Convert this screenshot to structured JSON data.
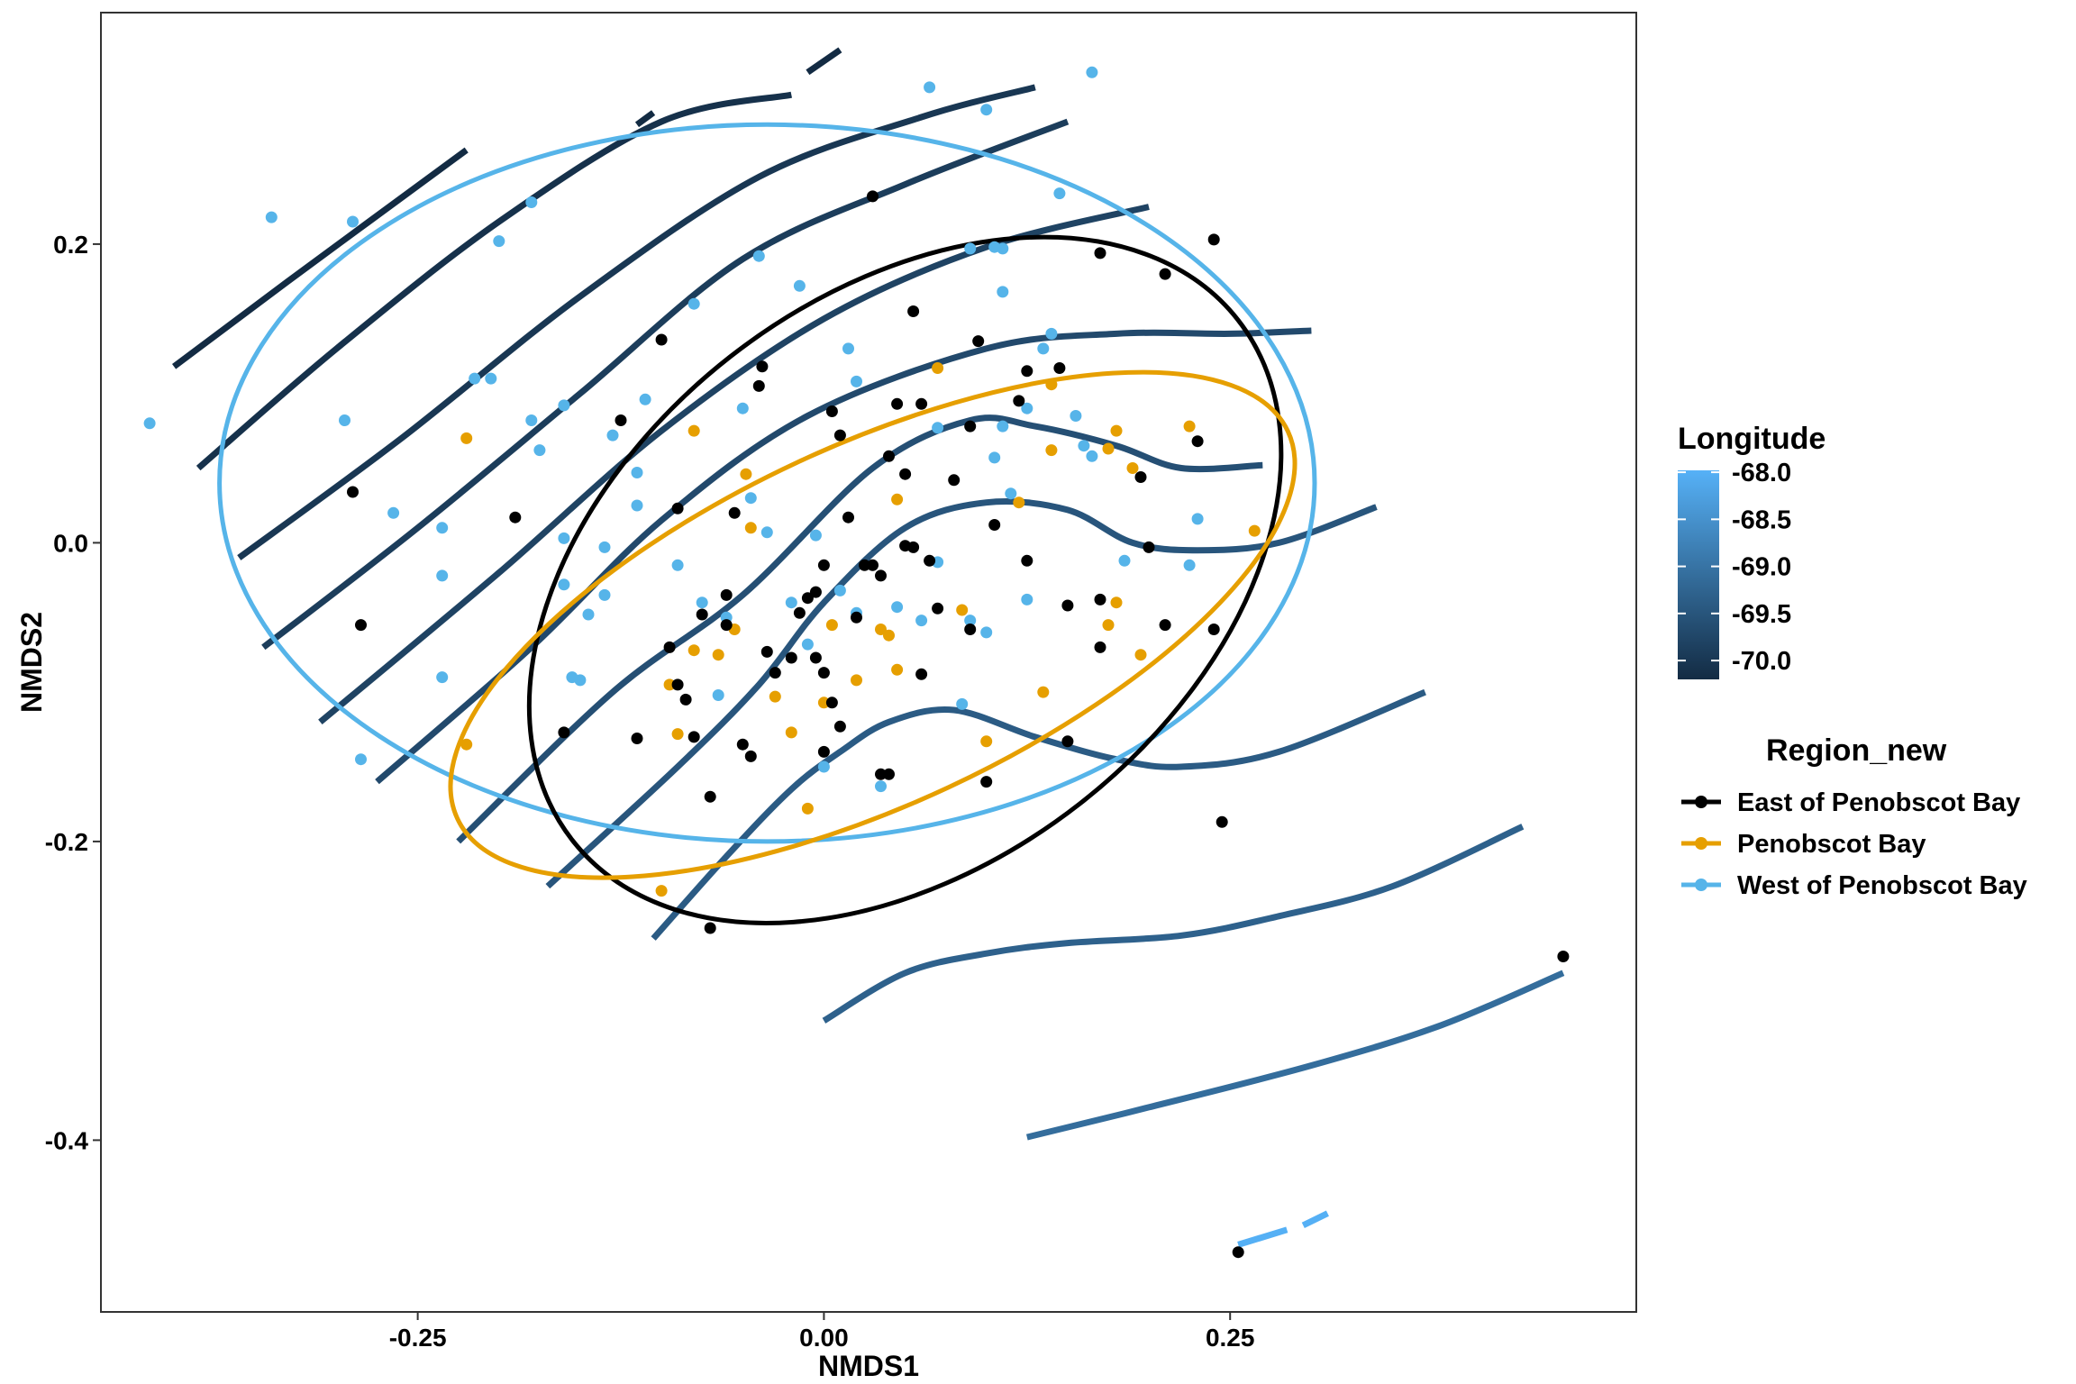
{
  "chart_data": {
    "type": "scatter",
    "xlabel": "NMDS1",
    "ylabel": "NMDS2",
    "xlim": [
      -0.445,
      0.5
    ],
    "ylim": [
      -0.515,
      0.355
    ],
    "xticks": [
      -0.25,
      0.0,
      0.25
    ],
    "yticks": [
      -0.4,
      -0.2,
      0.0,
      0.2
    ],
    "tick_labels_x": [
      "-0.25",
      "0.00",
      "0.25"
    ],
    "tick_labels_y": [
      "-0.4",
      "-0.2",
      "0.0",
      "0.2"
    ],
    "grid": false,
    "legend_color": {
      "title": "Longitude",
      "labels": [
        "-68.0",
        "-68.5",
        "-69.0",
        "-69.5",
        "-70.0"
      ],
      "values": [
        -68.0,
        -68.5,
        -69.0,
        -69.5,
        -70.0
      ],
      "range": [
        -70.2,
        -67.98
      ],
      "low_color": "#132B43",
      "high_color": "#56B1F7"
    },
    "legend_group": {
      "title": "Region_new",
      "placement": "right"
    },
    "series": [
      {
        "name": "East of Penobscot Bay",
        "color": "#000000",
        "points": [
          [
            0.03,
            0.232
          ],
          [
            -0.29,
            0.034
          ],
          [
            -0.285,
            -0.055
          ],
          [
            -0.19,
            0.017
          ],
          [
            -0.16,
            -0.127
          ],
          [
            -0.115,
            -0.131
          ],
          [
            -0.1,
            0.136
          ],
          [
            -0.095,
            -0.07
          ],
          [
            -0.09,
            0.023
          ],
          [
            -0.09,
            -0.095
          ],
          [
            -0.085,
            -0.105
          ],
          [
            -0.08,
            -0.13
          ],
          [
            -0.075,
            -0.048
          ],
          [
            -0.07,
            -0.17
          ],
          [
            -0.06,
            -0.035
          ],
          [
            -0.06,
            -0.055
          ],
          [
            -0.055,
            0.02
          ],
          [
            -0.05,
            -0.135
          ],
          [
            -0.045,
            -0.143
          ],
          [
            -0.04,
            0.105
          ],
          [
            -0.038,
            0.118
          ],
          [
            -0.035,
            -0.073
          ],
          [
            -0.03,
            -0.087
          ],
          [
            -0.02,
            -0.077
          ],
          [
            -0.015,
            -0.047
          ],
          [
            -0.01,
            -0.037
          ],
          [
            -0.005,
            -0.033
          ],
          [
            -0.005,
            -0.077
          ],
          [
            0.0,
            -0.087
          ],
          [
            0.005,
            -0.107
          ],
          [
            0.0,
            -0.14
          ],
          [
            0.005,
            0.088
          ],
          [
            0.01,
            0.072
          ],
          [
            0.01,
            -0.123
          ],
          [
            0.015,
            0.017
          ],
          [
            0.02,
            -0.05
          ],
          [
            0.025,
            -0.015
          ],
          [
            0.03,
            -0.015
          ],
          [
            0.035,
            -0.022
          ],
          [
            0.035,
            -0.155
          ],
          [
            0.04,
            -0.155
          ],
          [
            0.04,
            0.058
          ],
          [
            0.045,
            0.093
          ],
          [
            0.05,
            0.046
          ],
          [
            0.05,
            -0.002
          ],
          [
            0.055,
            -0.003
          ],
          [
            0.055,
            0.155
          ],
          [
            0.06,
            0.093
          ],
          [
            0.065,
            -0.012
          ],
          [
            0.06,
            -0.088
          ],
          [
            0.07,
            -0.044
          ],
          [
            0.08,
            0.042
          ],
          [
            0.09,
            -0.058
          ],
          [
            0.09,
            0.078
          ],
          [
            0.095,
            0.135
          ],
          [
            0.1,
            -0.16
          ],
          [
            0.105,
            0.012
          ],
          [
            0.12,
            0.095
          ],
          [
            0.125,
            -0.012
          ],
          [
            0.125,
            0.115
          ],
          [
            0.145,
            0.117
          ],
          [
            0.15,
            -0.042
          ],
          [
            0.15,
            -0.133
          ],
          [
            0.17,
            -0.07
          ],
          [
            0.17,
            -0.038
          ],
          [
            0.17,
            0.194
          ],
          [
            0.195,
            0.044
          ],
          [
            0.2,
            -0.003
          ],
          [
            0.21,
            0.18
          ],
          [
            0.21,
            -0.055
          ],
          [
            0.23,
            0.068
          ],
          [
            0.24,
            0.203
          ],
          [
            0.24,
            -0.058
          ],
          [
            0.245,
            -0.187
          ],
          [
            0.255,
            -0.475
          ],
          [
            0.455,
            -0.277
          ],
          [
            -0.07,
            -0.258
          ],
          [
            -0.125,
            0.082
          ],
          [
            0.0,
            -0.015
          ]
        ]
      },
      {
        "name": "Penobscot Bay",
        "color": "#E69F00",
        "points": [
          [
            -0.22,
            0.07
          ],
          [
            -0.22,
            -0.135
          ],
          [
            -0.095,
            -0.095
          ],
          [
            -0.09,
            -0.128
          ],
          [
            -0.08,
            -0.072
          ],
          [
            -0.08,
            0.075
          ],
          [
            -0.065,
            -0.075
          ],
          [
            -0.055,
            -0.058
          ],
          [
            -0.048,
            0.046
          ],
          [
            -0.045,
            0.01
          ],
          [
            -0.03,
            -0.103
          ],
          [
            -0.02,
            -0.127
          ],
          [
            -0.01,
            -0.178
          ],
          [
            0.0,
            -0.107
          ],
          [
            0.005,
            -0.055
          ],
          [
            0.02,
            -0.092
          ],
          [
            0.035,
            -0.058
          ],
          [
            0.04,
            -0.062
          ],
          [
            0.045,
            -0.085
          ],
          [
            0.045,
            0.029
          ],
          [
            0.07,
            0.117
          ],
          [
            0.085,
            -0.045
          ],
          [
            0.1,
            -0.133
          ],
          [
            0.12,
            0.027
          ],
          [
            0.135,
            -0.1
          ],
          [
            0.14,
            0.062
          ],
          [
            0.14,
            0.106
          ],
          [
            0.175,
            0.063
          ],
          [
            0.175,
            -0.055
          ],
          [
            0.18,
            -0.04
          ],
          [
            0.18,
            0.075
          ],
          [
            0.19,
            0.05
          ],
          [
            0.195,
            -0.075
          ],
          [
            0.225,
            0.078
          ],
          [
            0.265,
            0.008
          ],
          [
            -0.1,
            -0.233
          ]
        ]
      },
      {
        "name": "West of Penobscot Bay",
        "color": "#56B4E9",
        "points": [
          [
            -0.415,
            0.08
          ],
          [
            -0.34,
            0.218
          ],
          [
            -0.295,
            0.082
          ],
          [
            -0.29,
            0.215
          ],
          [
            -0.285,
            -0.145
          ],
          [
            -0.265,
            0.02
          ],
          [
            -0.235,
            -0.09
          ],
          [
            -0.235,
            -0.022
          ],
          [
            -0.235,
            0.01
          ],
          [
            -0.215,
            0.11
          ],
          [
            -0.205,
            0.11
          ],
          [
            -0.2,
            0.202
          ],
          [
            -0.18,
            0.228
          ],
          [
            -0.18,
            0.082
          ],
          [
            -0.175,
            0.062
          ],
          [
            -0.16,
            0.092
          ],
          [
            -0.16,
            0.003
          ],
          [
            -0.16,
            -0.028
          ],
          [
            -0.155,
            -0.09
          ],
          [
            -0.15,
            -0.092
          ],
          [
            -0.145,
            -0.048
          ],
          [
            -0.135,
            -0.035
          ],
          [
            -0.135,
            -0.003
          ],
          [
            -0.13,
            0.072
          ],
          [
            -0.115,
            0.025
          ],
          [
            -0.115,
            0.047
          ],
          [
            -0.11,
            0.096
          ],
          [
            -0.09,
            -0.015
          ],
          [
            -0.08,
            0.16
          ],
          [
            -0.075,
            -0.04
          ],
          [
            -0.06,
            -0.05
          ],
          [
            -0.05,
            0.09
          ],
          [
            -0.045,
            0.03
          ],
          [
            -0.04,
            0.192
          ],
          [
            -0.035,
            0.007
          ],
          [
            -0.02,
            -0.04
          ],
          [
            -0.015,
            0.172
          ],
          [
            -0.01,
            -0.068
          ],
          [
            -0.005,
            0.005
          ],
          [
            0.0,
            -0.15
          ],
          [
            0.01,
            -0.032
          ],
          [
            0.015,
            0.13
          ],
          [
            0.02,
            -0.047
          ],
          [
            0.02,
            0.108
          ],
          [
            0.035,
            -0.163
          ],
          [
            0.045,
            -0.043
          ],
          [
            0.06,
            -0.052
          ],
          [
            0.065,
            0.305
          ],
          [
            0.07,
            -0.013
          ],
          [
            0.07,
            0.077
          ],
          [
            0.085,
            -0.108
          ],
          [
            0.1,
            0.29
          ],
          [
            0.1,
            -0.06
          ],
          [
            0.105,
            0.057
          ],
          [
            0.11,
            0.078
          ],
          [
            0.11,
            0.168
          ],
          [
            0.11,
            0.197
          ],
          [
            0.115,
            0.033
          ],
          [
            0.125,
            -0.038
          ],
          [
            0.125,
            0.09
          ],
          [
            0.135,
            0.13
          ],
          [
            0.14,
            0.14
          ],
          [
            0.145,
            0.234
          ],
          [
            0.155,
            0.085
          ],
          [
            0.16,
            0.065
          ],
          [
            0.165,
            0.315
          ],
          [
            0.165,
            0.058
          ],
          [
            0.185,
            -0.012
          ],
          [
            0.225,
            -0.015
          ],
          [
            0.23,
            0.016
          ],
          [
            0.09,
            -0.052
          ],
          [
            0.105,
            0.198
          ],
          [
            -0.065,
            -0.102
          ],
          [
            0.09,
            0.197
          ]
        ]
      }
    ],
    "ellipses": [
      {
        "group": "West of Penobscot Bay",
        "center": [
          -0.035,
          0.04
        ],
        "rx": 0.337,
        "ry": 0.24,
        "angle_deg": 0
      },
      {
        "group": "East of Penobscot Bay",
        "center": [
          0.05,
          -0.025
        ],
        "rx": 0.26,
        "ry": 0.19,
        "angle_deg": 38
      },
      {
        "group": "Penobscot Bay",
        "center": [
          0.03,
          -0.055
        ],
        "rx": 0.282,
        "ry": 0.12,
        "angle_deg": 25
      }
    ],
    "contours": [
      {
        "level": -70.2,
        "points": [
          [
            -0.4,
            0.118
          ],
          [
            -0.33,
            0.175
          ],
          [
            -0.22,
            0.263
          ]
        ]
      },
      {
        "level": -70.2,
        "points": [
          [
            -0.115,
            0.28
          ],
          [
            -0.105,
            0.288
          ]
        ]
      },
      {
        "level": -70.2,
        "points": [
          [
            -0.01,
            0.315
          ],
          [
            0.01,
            0.33
          ]
        ]
      },
      {
        "level": -70.1,
        "points": [
          [
            -0.385,
            0.05
          ],
          [
            -0.3,
            0.13
          ],
          [
            -0.2,
            0.215
          ],
          [
            -0.1,
            0.282
          ],
          [
            -0.02,
            0.3
          ]
        ]
      },
      {
        "level": -70.0,
        "points": [
          [
            -0.36,
            -0.01
          ],
          [
            -0.26,
            0.07
          ],
          [
            -0.15,
            0.165
          ],
          [
            -0.04,
            0.245
          ],
          [
            0.06,
            0.285
          ],
          [
            0.13,
            0.305
          ]
        ]
      },
      {
        "level": -69.9,
        "points": [
          [
            -0.345,
            -0.07
          ],
          [
            -0.25,
            0.01
          ],
          [
            -0.15,
            0.1
          ],
          [
            -0.05,
            0.19
          ],
          [
            0.05,
            0.24
          ],
          [
            0.15,
            0.282
          ]
        ]
      },
      {
        "level": -69.8,
        "points": [
          [
            -0.31,
            -0.12
          ],
          [
            -0.2,
            -0.02
          ],
          [
            -0.1,
            0.075
          ],
          [
            0.0,
            0.15
          ],
          [
            0.1,
            0.198
          ],
          [
            0.2,
            0.225
          ]
        ]
      },
      {
        "level": -69.7,
        "points": [
          [
            -0.275,
            -0.16
          ],
          [
            -0.18,
            -0.07
          ],
          [
            -0.1,
            0.015
          ],
          [
            -0.01,
            0.085
          ],
          [
            0.1,
            0.13
          ],
          [
            0.18,
            0.14
          ],
          [
            0.25,
            0.14
          ],
          [
            0.3,
            0.142
          ]
        ]
      },
      {
        "level": -69.6,
        "points": [
          [
            -0.225,
            -0.2
          ],
          [
            -0.13,
            -0.1
          ],
          [
            -0.05,
            -0.035
          ],
          [
            0.03,
            0.05
          ],
          [
            0.09,
            0.082
          ],
          [
            0.13,
            0.078
          ],
          [
            0.18,
            0.065
          ],
          [
            0.22,
            0.05
          ],
          [
            0.27,
            0.052
          ]
        ]
      },
      {
        "level": -69.5,
        "points": [
          [
            -0.17,
            -0.23
          ],
          [
            -0.09,
            -0.15
          ],
          [
            -0.04,
            -0.095
          ],
          [
            0.0,
            -0.04
          ],
          [
            0.05,
            0.01
          ],
          [
            0.1,
            0.027
          ],
          [
            0.15,
            0.022
          ],
          [
            0.19,
            0.0
          ],
          [
            0.23,
            -0.005
          ],
          [
            0.28,
            0.0
          ],
          [
            0.34,
            0.024
          ]
        ]
      },
      {
        "level": -69.4,
        "points": [
          [
            -0.105,
            -0.265
          ],
          [
            -0.06,
            -0.21
          ],
          [
            -0.02,
            -0.165
          ],
          [
            0.01,
            -0.14
          ],
          [
            0.04,
            -0.12
          ],
          [
            0.08,
            -0.112
          ],
          [
            0.13,
            -0.13
          ],
          [
            0.18,
            -0.145
          ],
          [
            0.22,
            -0.15
          ],
          [
            0.28,
            -0.14
          ],
          [
            0.37,
            -0.1
          ]
        ]
      },
      {
        "level": -69.3,
        "points": [
          [
            0.0,
            -0.32
          ],
          [
            0.05,
            -0.288
          ],
          [
            0.1,
            -0.275
          ],
          [
            0.15,
            -0.268
          ],
          [
            0.22,
            -0.263
          ],
          [
            0.28,
            -0.25
          ],
          [
            0.35,
            -0.23
          ],
          [
            0.43,
            -0.19
          ]
        ]
      },
      {
        "level": -69.1,
        "points": [
          [
            0.125,
            -0.398
          ],
          [
            0.2,
            -0.378
          ],
          [
            0.3,
            -0.35
          ],
          [
            0.38,
            -0.323
          ],
          [
            0.455,
            -0.288
          ]
        ]
      },
      {
        "level": -68.0,
        "points": [
          [
            0.255,
            -0.47
          ],
          [
            0.285,
            -0.46
          ]
        ]
      },
      {
        "level": -68.0,
        "points": [
          [
            0.295,
            -0.457
          ],
          [
            0.31,
            -0.449
          ]
        ]
      }
    ]
  }
}
